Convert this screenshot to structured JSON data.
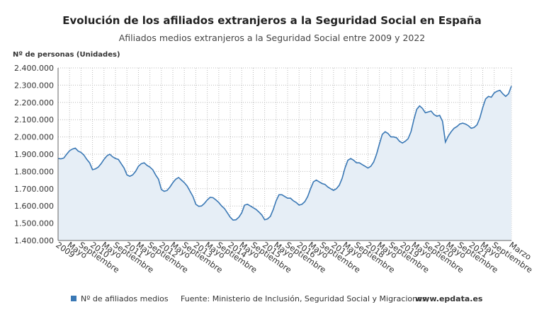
{
  "chart_data": {
    "type": "area-line",
    "title": "Evolución de los afiliados extranjeros a la Seguridad Social en España",
    "subtitle": "Afiliados medios extranjeros a la Seguridad Social entre 2009 y 2022",
    "y_label": "Nº de personas (Unidades)",
    "source": "Fuente: Ministerio de Inclusión, Seguridad Social y Migraciones,",
    "source_link": "www.epdata.es",
    "categories": [
      "2009",
      null,
      null,
      null,
      "Mayo",
      null,
      null,
      null,
      "Septiembre",
      null,
      null,
      null,
      "2010",
      null,
      null,
      null,
      "Mayo",
      null,
      null,
      null,
      "Septiembre",
      null,
      null,
      null,
      "2011",
      null,
      null,
      null,
      "Mayo",
      null,
      null,
      null,
      "Septiembre",
      null,
      null,
      null,
      "2012",
      null,
      null,
      null,
      "Mayo",
      null,
      null,
      null,
      "Septiembre",
      null,
      null,
      null,
      "2013",
      null,
      null,
      null,
      "Mayo",
      null,
      null,
      null,
      "Septiembre",
      null,
      null,
      null,
      "2014",
      null,
      null,
      null,
      "Mayo",
      null,
      null,
      null,
      "Septiembre",
      null,
      null,
      null,
      "2015",
      null,
      null,
      null,
      "Mayo",
      null,
      null,
      null,
      "Septiembre",
      null,
      null,
      null,
      "2016",
      null,
      null,
      null,
      "Mayo",
      null,
      null,
      null,
      "Septiembre",
      null,
      null,
      null,
      "2017",
      null,
      null,
      null,
      "Mayo",
      null,
      null,
      null,
      "Septiembre",
      null,
      null,
      null,
      "2018",
      null,
      null,
      null,
      "Mayo",
      null,
      null,
      null,
      "Septiembre",
      null,
      null,
      null,
      "2019",
      null,
      null,
      null,
      "Mayo",
      null,
      null,
      null,
      "Septiembre",
      null,
      null,
      null,
      "2020",
      null,
      null,
      null,
      "Mayo",
      null,
      null,
      null,
      "Septiembre",
      null,
      null,
      null,
      "2021",
      null,
      null,
      null,
      "Mayo",
      null,
      null,
      null,
      "Septiembre",
      null,
      null,
      null,
      null,
      null,
      "Marzo"
    ],
    "series": [
      {
        "name": "Nº de afiliados medios",
        "color": "#3a78b5",
        "fill": "#e6eef6",
        "values": [
          1875000,
          1873000,
          1878000,
          1900000,
          1920000,
          1930000,
          1935000,
          1918000,
          1910000,
          1895000,
          1870000,
          1850000,
          1810000,
          1815000,
          1825000,
          1845000,
          1870000,
          1890000,
          1900000,
          1885000,
          1875000,
          1870000,
          1845000,
          1820000,
          1780000,
          1772000,
          1780000,
          1800000,
          1830000,
          1845000,
          1850000,
          1835000,
          1825000,
          1810000,
          1780000,
          1755000,
          1695000,
          1685000,
          1690000,
          1710000,
          1735000,
          1755000,
          1765000,
          1750000,
          1735000,
          1715000,
          1685000,
          1655000,
          1610000,
          1598000,
          1600000,
          1615000,
          1635000,
          1650000,
          1648000,
          1635000,
          1620000,
          1600000,
          1585000,
          1560000,
          1535000,
          1518000,
          1520000,
          1535000,
          1560000,
          1605000,
          1610000,
          1600000,
          1590000,
          1580000,
          1565000,
          1548000,
          1520000,
          1525000,
          1540000,
          1580000,
          1630000,
          1665000,
          1665000,
          1655000,
          1645000,
          1645000,
          1630000,
          1620000,
          1605000,
          1610000,
          1625000,
          1655000,
          1700000,
          1740000,
          1750000,
          1740000,
          1730000,
          1725000,
          1710000,
          1700000,
          1690000,
          1700000,
          1720000,
          1760000,
          1820000,
          1865000,
          1875000,
          1865000,
          1850000,
          1850000,
          1840000,
          1830000,
          1820000,
          1830000,
          1855000,
          1900000,
          1960000,
          2015000,
          2030000,
          2020000,
          2000000,
          2000000,
          1995000,
          1975000,
          1965000,
          1975000,
          1990000,
          2030000,
          2100000,
          2160000,
          2180000,
          2165000,
          2140000,
          2145000,
          2150000,
          2130000,
          2120000,
          2125000,
          2090000,
          1970000,
          2005000,
          2030000,
          2050000,
          2060000,
          2075000,
          2080000,
          2075000,
          2065000,
          2050000,
          2055000,
          2070000,
          2110000,
          2170000,
          2220000,
          2235000,
          2230000,
          2255000,
          2265000,
          2270000,
          2250000,
          2235000,
          2250000,
          2295000
        ]
      }
    ],
    "ylim": [
      1400000,
      2400000
    ],
    "yticks": [
      {
        "value": 1400000,
        "label": "1.400.000"
      },
      {
        "value": 1500000,
        "label": "1.500.000"
      },
      {
        "value": 1600000,
        "label": "1.600.000"
      },
      {
        "value": 1700000,
        "label": "1.700.000"
      },
      {
        "value": 1800000,
        "label": "1.800.000"
      },
      {
        "value": 1900000,
        "label": "1.900.000"
      },
      {
        "value": 2000000,
        "label": "2.000.000"
      },
      {
        "value": 2100000,
        "label": "2.100.000"
      },
      {
        "value": 2200000,
        "label": "2.200.000"
      },
      {
        "value": 2300000,
        "label": "2.300.000"
      },
      {
        "value": 2400000,
        "label": "2.400.000"
      }
    ],
    "grid": true
  }
}
